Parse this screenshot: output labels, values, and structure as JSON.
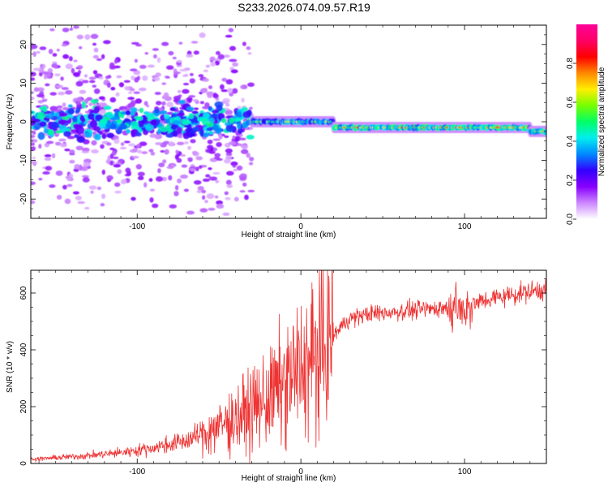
{
  "title": "S233.2026.074.09.57.R19",
  "chart_data": [
    {
      "type": "heatmap",
      "name": "spectrogram",
      "xlabel": "Height of straight line (km)",
      "ylabel": "Frequency (Hz)",
      "xlim": [
        -165,
        150
      ],
      "ylim": [
        -25,
        25
      ],
      "xticks": [
        -100,
        0,
        100
      ],
      "yticks": [
        -20,
        -10,
        0,
        10,
        20
      ],
      "colorbar": {
        "label": "Normalized spectral amplitude",
        "range": [
          0,
          1
        ],
        "ticks": [
          0.0,
          0.2,
          0.4,
          0.6,
          0.8
        ],
        "colormap": [
          "#ffffff",
          "#cc88ff",
          "#8800ff",
          "#3300ff",
          "#0088ff",
          "#00eeee",
          "#00ff66",
          "#77ff00",
          "#ffee00",
          "#ff8800",
          "#ff0000",
          "#ff0066",
          "#ff0099"
        ]
      },
      "segments": [
        {
          "x_start": -165,
          "x_end": -30,
          "center_freq": 0,
          "band_halfwidth": 4,
          "scatter_halfwidth": 25,
          "amplitude": 0.35
        },
        {
          "x_start": -30,
          "x_end": 20,
          "center_freq": 0,
          "band_halfwidth": 1.5,
          "amplitude": 0.65
        },
        {
          "x_start": 20,
          "x_end": 140,
          "center_freq": -1.5,
          "band_halfwidth": 1.2,
          "amplitude": 0.85
        },
        {
          "x_start": 140,
          "x_end": 150,
          "center_freq": -2.5,
          "band_halfwidth": 1.0,
          "amplitude": 0.9
        }
      ]
    },
    {
      "type": "line",
      "name": "snr",
      "xlabel": "Height of straight line (km)",
      "ylabel": "SNR (10 * v/v)",
      "xlim": [
        -165,
        150
      ],
      "ylim": [
        0,
        680
      ],
      "xticks": [
        -100,
        0,
        100
      ],
      "yticks": [
        0,
        200,
        400,
        600
      ],
      "color": "#ee3333",
      "x": [
        -165,
        -150,
        -130,
        -110,
        -90,
        -70,
        -60,
        -50,
        -40,
        -30,
        -20,
        -10,
        0,
        5,
        10,
        15,
        20,
        25,
        30,
        40,
        50,
        60,
        70,
        80,
        90,
        95,
        100,
        105,
        110,
        120,
        130,
        140,
        150
      ],
      "y": [
        15,
        20,
        28,
        38,
        55,
        80,
        105,
        130,
        160,
        190,
        230,
        280,
        330,
        360,
        380,
        420,
        450,
        485,
        510,
        525,
        530,
        535,
        540,
        545,
        550,
        560,
        540,
        560,
        570,
        585,
        595,
        605,
        615
      ]
    }
  ]
}
